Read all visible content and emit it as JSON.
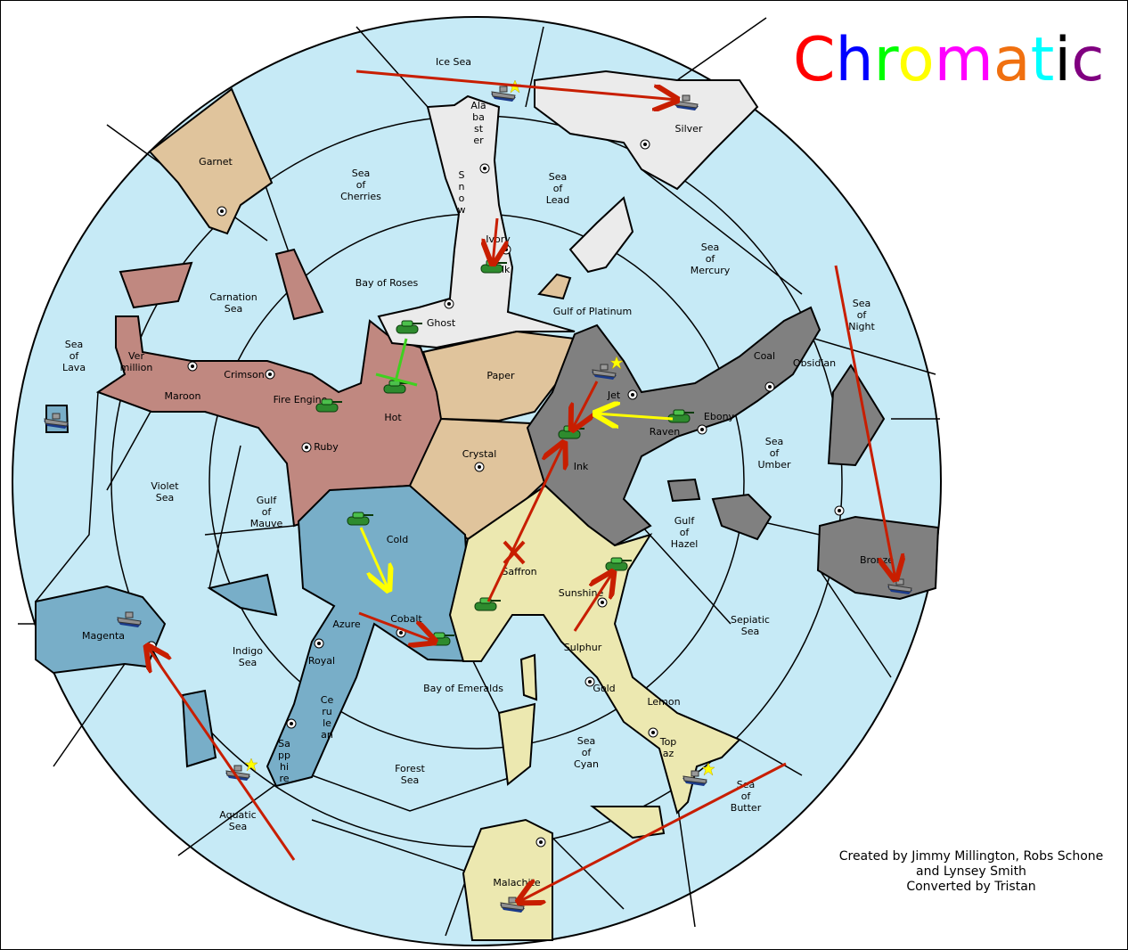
{
  "title": {
    "letters": [
      {
        "ch": "C",
        "color": "#ff0000"
      },
      {
        "ch": "h",
        "color": "#0000ff"
      },
      {
        "ch": "r",
        "color": "#00ff00"
      },
      {
        "ch": "o",
        "color": "#ffff00"
      },
      {
        "ch": "m",
        "color": "#ff00ff"
      },
      {
        "ch": "a",
        "color": "#f07010"
      },
      {
        "ch": "t",
        "color": "#00ffff"
      },
      {
        "ch": "i",
        "color": "#000000"
      },
      {
        "ch": "c",
        "color": "#800080"
      }
    ]
  },
  "credits": [
    "Created by Jimmy Millington, Robs Schone",
    "and Lynsey Smith",
    "Converted by Tristan"
  ],
  "colors": {
    "sea": "#c6eaf6",
    "red_power": "#c08880",
    "tan_power": "#e0c49c",
    "grey_power": "#808080",
    "white_power": "#ebebeb",
    "blue_power": "#78aec8",
    "yellow_power": "#ece8b0",
    "move_order": "#c81e00",
    "support_order": "#ffff00",
    "hold_order": "#40d020"
  },
  "labels": {
    "ice_sea": "Ice Sea",
    "alabaster": [
      "Ala",
      "ba",
      "st",
      "er"
    ],
    "silver": "Silver",
    "garnet": "Garnet",
    "sea_of_cherries": [
      "Sea",
      "of",
      "Cherries"
    ],
    "sea_of_lead": [
      "Sea",
      "of",
      "Lead"
    ],
    "snow": [
      "S",
      "n",
      "o",
      "w"
    ],
    "ivory": "Ivory",
    "chalk": "Chalk",
    "sea_of_mercury": [
      "Sea",
      "of",
      "Mercury"
    ],
    "carnation_sea": [
      "Carnation",
      "Sea"
    ],
    "bay_of_roses": "Bay of Roses",
    "gulf_of_platinum": "Gulf of Platinum",
    "ghost": "Ghost",
    "sea_of_night": [
      "Sea",
      "of",
      "Night"
    ],
    "sea_of_lava": [
      "Sea",
      "of",
      "Lava"
    ],
    "vermillion": [
      "Ver",
      "million"
    ],
    "crimson": "Crimson",
    "maroon": "Maroon",
    "fire_engine": "Fire Engine",
    "hot": "Hot",
    "paper": "Paper",
    "jet": "Jet",
    "coal": "Coal",
    "obsidian": "Obsidian",
    "raven": "Raven",
    "ebony": "Ebony",
    "ruby": "Ruby",
    "crystal": "Crystal",
    "ink": "Ink",
    "sea_of_umber": [
      "Sea",
      "of",
      "Umber"
    ],
    "violet_sea": [
      "Violet",
      "Sea"
    ],
    "gulf_of_mauve": [
      "Gulf",
      "of",
      "Mauve"
    ],
    "cold": "Cold",
    "gulf_of_hazel": [
      "Gulf",
      "of",
      "Hazel"
    ],
    "saffron": "Saffron",
    "bronze": "Bronze",
    "sunshine": "Sunshine",
    "magenta": "Magenta",
    "azure": "Azure",
    "cobalt": "Cobalt",
    "sepiatic_sea": [
      "Sepiatic",
      "Sea"
    ],
    "indigo_sea": [
      "Indigo",
      "Sea"
    ],
    "royal": "Royal",
    "sulphur": "Sulphur",
    "gold": "Gold",
    "bay_of_emeralds": "Bay of Emeralds",
    "lemon": "Lemon",
    "cerulean": [
      "Ce",
      "ru",
      "le",
      "an"
    ],
    "sea_of_cyan": [
      "Sea",
      "of",
      "Cyan"
    ],
    "topaz": [
      "Top",
      "az"
    ],
    "sapphire": [
      "Sa",
      "pp",
      "hi",
      "re"
    ],
    "forest_sea": [
      "Forest",
      "Sea"
    ],
    "sea_of_butter": [
      "Sea",
      "of",
      "Butter"
    ],
    "aquatic_sea": [
      "Aquatic",
      "Sea"
    ],
    "malachite": "Malachite"
  },
  "units": {
    "army_icon": "tank-icon",
    "fleet_icon": "battleship-icon",
    "star_icon": "star-icon",
    "supply_center_icon": "supply-center-icon",
    "failed_order_icon": "x-mark-icon"
  }
}
